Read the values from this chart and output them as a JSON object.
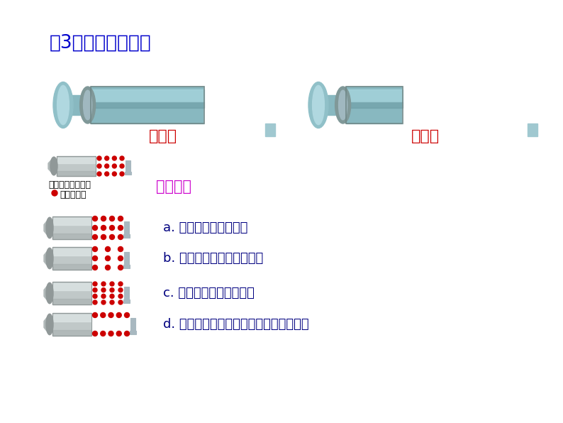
{
  "title": "（3）分子间有间隔",
  "title_color": "#0000cc",
  "title_fontsize": 19,
  "label_before": "加热前",
  "label_after": "加热后",
  "label_color": "#cc0000",
  "label_fontsize": 16,
  "legend_text1": "封闭在针筒中的水",
  "legend_text2": "  表示水分子",
  "guess_text": "我猜想：",
  "guess_color": "#cc00cc",
  "options": [
    "a. 水分子本身变大了？",
    "b. 分子之间的间隔变大了？",
    "c. 水分子的数目增多了？",
    "d. 水分子受热都冲到针筒的另一端去了？"
  ],
  "option_color": "#000080",
  "option_fontsize": 13,
  "bg_color": "#ffffff",
  "water_color": "#cc0000",
  "tube_color_teal": "#8cc8d0",
  "tube_color_gray": "#909898",
  "tube_color_light": "#b8c8cc",
  "plunger_color": "#a8c8d0",
  "small_body_color": "#c8cccc",
  "small_highlight": "#e8ecec"
}
